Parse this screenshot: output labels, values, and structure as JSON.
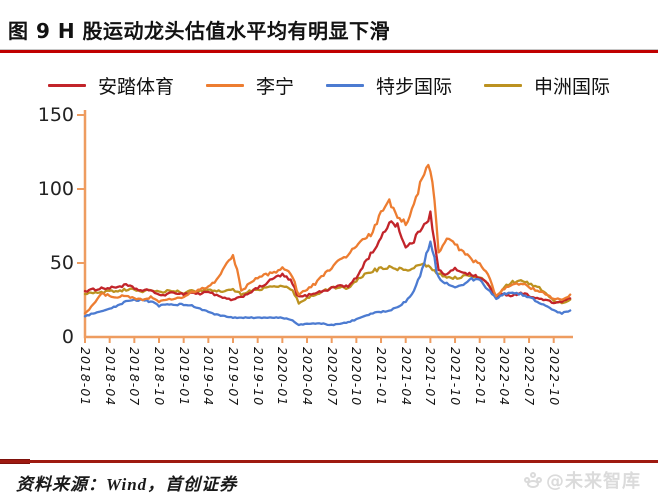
{
  "header": {
    "title": "图 9 H 股运动龙头估值水平均有明显下滑",
    "rule_color": "#C00000"
  },
  "footer": {
    "source": "资料来源：Wind，首创证券",
    "rule_color": "#9E1A10",
    "watermark": "@未来智库"
  },
  "chart_data": {
    "type": "line",
    "title": "图 9 H 股运动龙头估值水平均有明显下滑",
    "xlabel": "",
    "ylabel": "",
    "ylim": [
      0,
      150
    ],
    "yticks": [
      0,
      50,
      100,
      150
    ],
    "grid": false,
    "legend_position": "top",
    "axis_color": "#EE9C60",
    "xtick_labels": [
      "2018-01",
      "2018-04",
      "2018-07",
      "2018-10",
      "2019-01",
      "2019-04",
      "2019-07",
      "2019-10",
      "2020-01",
      "2020-04",
      "2020-07",
      "2020-10",
      "2021-01",
      "2021-04",
      "2021-07",
      "2021-10",
      "2022-01",
      "2022-04",
      "2022-07",
      "2022-10"
    ],
    "x": [
      "2018-01",
      "2018-02",
      "2018-03",
      "2018-04",
      "2018-05",
      "2018-06",
      "2018-07",
      "2018-08",
      "2018-09",
      "2018-10",
      "2018-11",
      "2018-12",
      "2019-01",
      "2019-02",
      "2019-03",
      "2019-04",
      "2019-05",
      "2019-06",
      "2019-07",
      "2019-08",
      "2019-09",
      "2019-10",
      "2019-11",
      "2019-12",
      "2020-01",
      "2020-02",
      "2020-03",
      "2020-04",
      "2020-05",
      "2020-06",
      "2020-07",
      "2020-08",
      "2020-09",
      "2020-10",
      "2020-11",
      "2020-12",
      "2021-01",
      "2021-02",
      "2021-03",
      "2021-04",
      "2021-05",
      "2021-06",
      "2021-07",
      "2021-08",
      "2021-09",
      "2021-10",
      "2021-11",
      "2021-12",
      "2022-01",
      "2022-02",
      "2022-03",
      "2022-04",
      "2022-05",
      "2022-06",
      "2022-07",
      "2022-08",
      "2022-09",
      "2022-10",
      "2022-11",
      "2022-12"
    ],
    "series": [
      {
        "name": "安踏体育",
        "color": "#C2242A",
        "values": [
          31,
          32,
          33,
          33,
          34,
          35,
          33,
          31,
          32,
          28,
          29,
          30,
          29,
          30,
          29,
          31,
          28,
          26,
          25,
          27,
          30,
          33,
          36,
          40,
          42,
          38,
          27,
          28,
          30,
          31,
          33,
          35,
          34,
          40,
          50,
          58,
          66,
          78,
          76,
          60,
          65,
          75,
          82,
          45,
          42,
          46,
          44,
          42,
          40,
          36,
          27,
          29,
          28,
          30,
          28,
          26,
          25,
          23,
          24,
          26
        ]
      },
      {
        "name": "李宁",
        "color": "#ED7D31",
        "values": [
          16,
          22,
          29,
          28,
          27,
          28,
          26,
          25,
          27,
          24,
          25,
          26,
          27,
          30,
          32,
          34,
          38,
          48,
          56,
          31,
          36,
          40,
          42,
          44,
          46,
          44,
          29,
          32,
          36,
          42,
          47,
          52,
          55,
          62,
          66,
          70,
          86,
          91,
          80,
          77,
          88,
          108,
          117,
          58,
          66,
          62,
          58,
          52,
          49,
          42,
          27,
          33,
          35,
          36,
          34,
          31,
          29,
          26,
          25,
          28
        ]
      },
      {
        "name": "特步国际",
        "color": "#4C7BD1",
        "values": [
          14,
          16,
          17,
          19,
          21,
          24,
          25,
          25,
          24,
          21,
          22,
          22,
          22,
          21,
          19,
          17,
          15,
          14,
          13,
          13,
          13,
          13,
          13,
          13,
          13,
          12,
          8,
          9,
          9,
          9,
          8,
          9,
          10,
          12,
          14,
          16,
          17,
          18,
          20,
          24,
          30,
          45,
          66,
          40,
          36,
          34,
          36,
          39,
          38,
          32,
          26,
          29,
          30,
          29,
          27,
          24,
          21,
          18,
          16,
          18
        ]
      },
      {
        "name": "申洲国际",
        "color": "#BC9220",
        "values": [
          29,
          30,
          30,
          31,
          31,
          32,
          32,
          31,
          32,
          30,
          31,
          31,
          30,
          31,
          31,
          32,
          31,
          31,
          32,
          29,
          31,
          32,
          33,
          34,
          34,
          33,
          23,
          26,
          29,
          31,
          33,
          34,
          33,
          38,
          42,
          45,
          46,
          47,
          46,
          45,
          47,
          50,
          47,
          43,
          41,
          40,
          41,
          42,
          40,
          36,
          26,
          34,
          37,
          38,
          36,
          34,
          30,
          24,
          23,
          25
        ]
      }
    ]
  }
}
